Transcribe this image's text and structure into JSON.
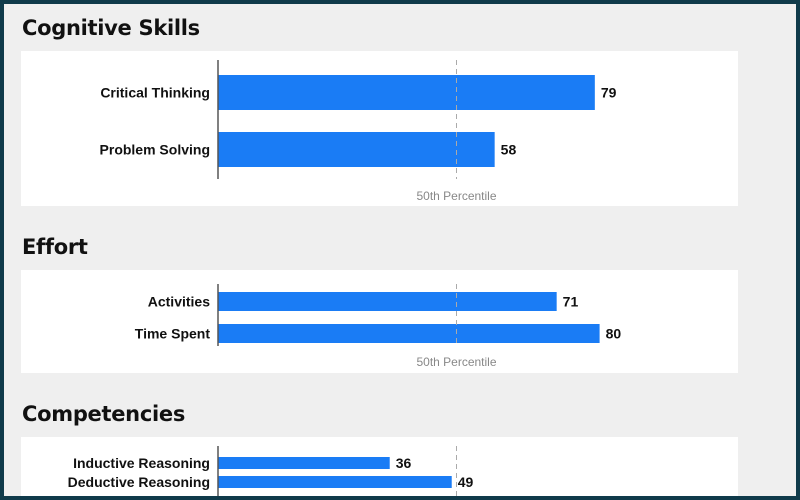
{
  "chart_data": [
    {
      "type": "bar",
      "orientation": "horizontal",
      "title": "Cognitive Skills",
      "categories": [
        "Critical Thinking",
        "Problem Solving"
      ],
      "values": [
        79,
        58
      ],
      "xlim": [
        0,
        100
      ],
      "reference_line": {
        "value": 50,
        "label": "50th Percentile"
      },
      "bar_color": "#1a7cf5"
    },
    {
      "type": "bar",
      "orientation": "horizontal",
      "title": "Effort",
      "categories": [
        "Activities",
        "Time Spent"
      ],
      "values": [
        71,
        80
      ],
      "xlim": [
        0,
        100
      ],
      "reference_line": {
        "value": 50,
        "label": "50th Percentile"
      },
      "bar_color": "#1a7cf5"
    },
    {
      "type": "bar",
      "orientation": "horizontal",
      "title": "Competencies",
      "categories": [
        "Inductive Reasoning",
        "Deductive Reasoning"
      ],
      "values": [
        36,
        49
      ],
      "xlim": [
        0,
        100
      ],
      "reference_line": {
        "value": 50,
        "label": ""
      },
      "bar_color": "#1a7cf5"
    }
  ]
}
